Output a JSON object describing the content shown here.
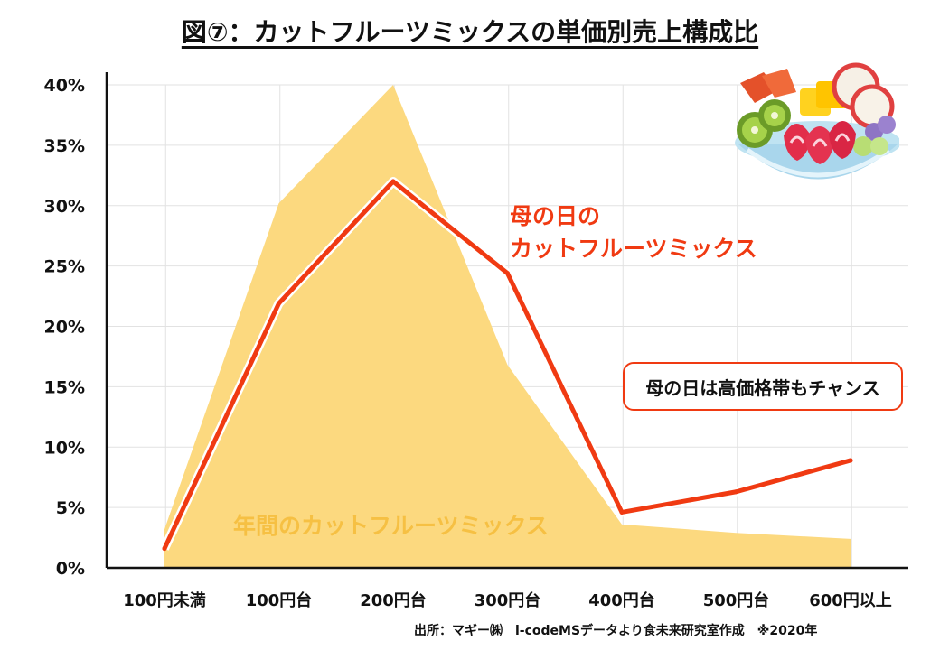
{
  "title": "図⑦：カットフルーツミックスの単価別売上構成比",
  "source": "出所：マギー㈱　i-codeMSデータより食未来研究室作成　※2020年",
  "colors": {
    "mothers_day": "#f03a12",
    "annual": "#fcd97f",
    "annual_text": "#f6c043",
    "grid": "#e2e2e2",
    "axis": "#111111"
  },
  "chart_data": {
    "type": "area+line",
    "title": "図⑦：カットフルーツミックスの単価別売上構成比",
    "xlabel": "",
    "ylabel": "",
    "categories": [
      "100円未満",
      "100円台",
      "200円台",
      "300円台",
      "400円台",
      "500円台",
      "600円以上"
    ],
    "ylim": [
      0,
      40
    ],
    "yticks": [
      0,
      5,
      10,
      15,
      20,
      25,
      30,
      35,
      40
    ],
    "ytick_labels": [
      "0%",
      "5%",
      "10%",
      "15%",
      "20%",
      "25%",
      "30%",
      "35%",
      "40%"
    ],
    "series": [
      {
        "name": "年間のカットフルーツミックス",
        "type": "area",
        "values": [
          3.2,
          30.2,
          40.0,
          16.8,
          3.6,
          2.9,
          2.4
        ]
      },
      {
        "name": "母の日のカットフルーツミックス",
        "type": "line",
        "values": [
          1.6,
          21.9,
          32.0,
          24.4,
          4.6,
          6.3,
          8.9
        ]
      }
    ],
    "annotations": {
      "mothers_day_line1": "母の日の",
      "mothers_day_line2": "カットフルーツミックス",
      "annual": "年間のカットフルーツミックス",
      "callout": "母の日は高価格帯もチャンス"
    }
  },
  "illustration": {
    "name": "fruit-bowl-illustration"
  }
}
